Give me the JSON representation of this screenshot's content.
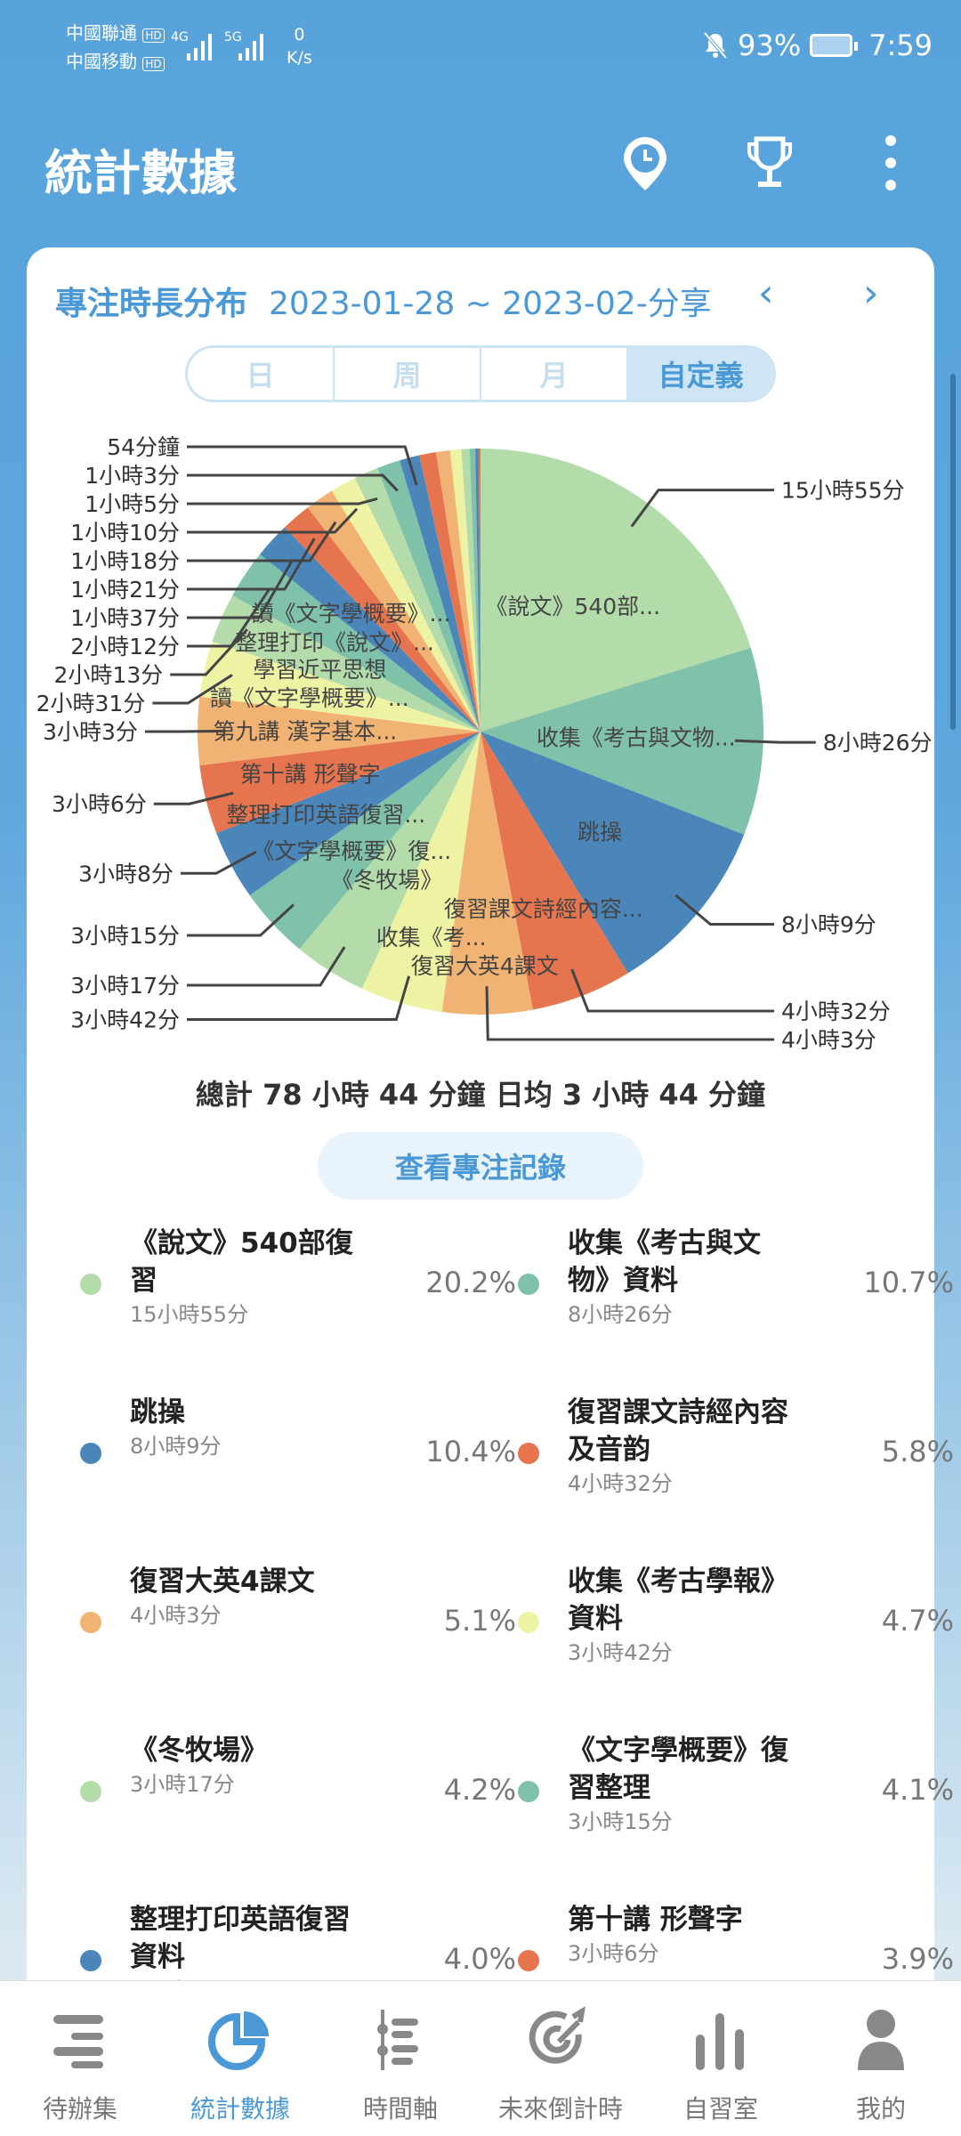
{
  "status_bar": {
    "carrier1": "中國聯通",
    "carrier2": "中國移動",
    "hd": "HD",
    "net1": "4G",
    "net2": "5G",
    "speed_value": "0",
    "speed_unit": "K/s",
    "battery": "93%",
    "time": "7:59"
  },
  "header": {
    "title": "統計數據",
    "icons": [
      "clock-pin-icon",
      "trophy-icon",
      "more-vert-icon"
    ]
  },
  "card": {
    "title": "專注時長分布",
    "date_range": "2023-01-28 ~ 2023-02-分享",
    "prev": "‹",
    "next": "›",
    "segments": [
      "日",
      "周",
      "月",
      "自定義"
    ],
    "selected_segment": "自定義"
  },
  "chart_data": {
    "type": "pie",
    "colors": [
      "#b3dcaa",
      "#7fc1a9",
      "#4a86ba",
      "#e6754f",
      "#f1b374",
      "#eef3a3"
    ],
    "slices": [
      {
        "name": "《說文》540部...",
        "value_min": 955,
        "label": "15小時55分"
      },
      {
        "name": "收集《考古與文物...",
        "value_min": 506,
        "label": "8小時26分"
      },
      {
        "name": "跳操",
        "value_min": 489,
        "label": "8小時9分"
      },
      {
        "name": "復習課文詩經內容...",
        "value_min": 272,
        "label": "4小時32分"
      },
      {
        "name": "復習大英4課文",
        "value_min": 243,
        "label": "4小時3分"
      },
      {
        "name": "收集《考...",
        "value_min": 222,
        "label": "3小時42分"
      },
      {
        "name": "《冬牧場》",
        "value_min": 197,
        "label": "3小時17分"
      },
      {
        "name": "《文字學概要》復...",
        "value_min": 195,
        "label": "3小時15分"
      },
      {
        "name": "整理打印英語復習...",
        "value_min": 188,
        "label": "3小時8分"
      },
      {
        "name": "第十講 形聲字",
        "value_min": 186,
        "label": "3小時6分"
      },
      {
        "name": "第九講 漢字基本...",
        "value_min": 183,
        "label": "3小時3分"
      },
      {
        "name": "讀《文字學概要》...",
        "value_min": 151,
        "label": "2小時31分"
      },
      {
        "name": "學習近平思想",
        "value_min": 133,
        "label": "2小時13分"
      },
      {
        "name": "整理打印《說文》...",
        "value_min": 132,
        "label": "2小時12分"
      },
      {
        "name": "讀《文字學概要》...",
        "value_min": 97,
        "label": "1小時37分"
      },
      {
        "name": "",
        "value_min": 81,
        "label": "1小時21分"
      },
      {
        "name": "",
        "value_min": 78,
        "label": "1小時18分"
      },
      {
        "name": "",
        "value_min": 70,
        "label": "1小時10分"
      },
      {
        "name": "",
        "value_min": 65,
        "label": "1小時5分"
      },
      {
        "name": "",
        "value_min": 63,
        "label": "1小時3分"
      },
      {
        "name": "",
        "value_min": 54,
        "label": "54分鐘"
      },
      {
        "name": "",
        "value_min": 45,
        "label": ""
      },
      {
        "name": "",
        "value_min": 38,
        "label": ""
      },
      {
        "name": "",
        "value_min": 30,
        "label": ""
      },
      {
        "name": "",
        "value_min": 22,
        "label": ""
      },
      {
        "name": "",
        "value_min": 15,
        "label": ""
      },
      {
        "name": "",
        "value_min": 9,
        "label": ""
      },
      {
        "name": "",
        "value_min": 5,
        "label": ""
      }
    ]
  },
  "summary": "總計 78 小時 44 分鐘 日均 3 小時 44 分鐘",
  "view_records_button": "查看專注記錄",
  "items": [
    {
      "name": "《說文》540部復習",
      "time": "15小時55分",
      "pct": "20.2%",
      "color": "#b3dcaa"
    },
    {
      "name": "收集《考古與文物》資料",
      "time": "8小時26分",
      "pct": "10.7%",
      "color": "#7fc1a9"
    },
    {
      "name": "跳操",
      "time": "8小時9分",
      "pct": "10.4%",
      "color": "#4a86ba"
    },
    {
      "name": "復習課文詩經內容及音韵",
      "time": "4小時32分",
      "pct": "5.8%",
      "color": "#e6754f"
    },
    {
      "name": "復習大英4課文",
      "time": "4小時3分",
      "pct": "5.1%",
      "color": "#f1b374"
    },
    {
      "name": "收集《考古學報》資料",
      "time": "3小時42分",
      "pct": "4.7%",
      "color": "#eef3a3"
    },
    {
      "name": "《冬牧場》",
      "time": "3小時17分",
      "pct": "4.2%",
      "color": "#b3dcaa"
    },
    {
      "name": "《文字學概要》復習整理",
      "time": "3小時15分",
      "pct": "4.1%",
      "color": "#7fc1a9"
    },
    {
      "name": "整理打印英語復習資料",
      "time": "3小時8分",
      "pct": "4.0%",
      "color": "#4a86ba"
    },
    {
      "name": "第十講 形聲字",
      "time": "3小時6分",
      "pct": "3.9%",
      "color": "#e6754f"
    },
    {
      "name": "第九講 漢字基本",
      "time": "",
      "pct": "",
      "color": "#f1b374"
    },
    {
      "name": "讀《文字學概",
      "time": "",
      "pct": "",
      "color": "#eef3a3"
    }
  ],
  "bottom_nav": [
    {
      "label": "待辦集",
      "icon": "list-icon"
    },
    {
      "label": "統計數據",
      "icon": "pie-chart-icon",
      "active": true
    },
    {
      "label": "時間軸",
      "icon": "timeline-icon"
    },
    {
      "label": "未來倒計時",
      "icon": "target-icon"
    },
    {
      "label": "自習室",
      "icon": "bar-chart-icon"
    },
    {
      "label": "我的",
      "icon": "person-icon"
    }
  ],
  "accent_color": "#4a98d6"
}
